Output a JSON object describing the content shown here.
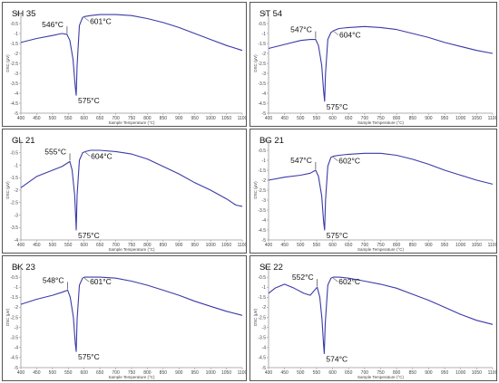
{
  "colors": {
    "trace": "#3a3aa8",
    "frame": "#555555",
    "axis": "#999999",
    "annotation_line": "#555555"
  },
  "chart_data": [
    {
      "type": "line",
      "panel_label": "SH 35",
      "xlabel": "Sample Temperature (°C)",
      "ylabel": "DSC (μV)",
      "xlim": [
        400,
        1100
      ],
      "ylim": [
        -5,
        0
      ],
      "xticks": [
        400,
        450,
        500,
        550,
        600,
        650,
        700,
        750,
        800,
        850,
        900,
        950,
        1000,
        1050,
        1100
      ],
      "yticks": [
        0,
        -0.5,
        -1,
        -1.5,
        -2,
        -2.5,
        -3,
        -3.5,
        -4,
        -4.5,
        -5
      ],
      "ytick_labels": [
        "0",
        "-0.5",
        "-1",
        "-1.5",
        "-2",
        "-2.5",
        "-3",
        "-3.5",
        "-4",
        "-4.5",
        "-5"
      ],
      "series": [
        {
          "x": [
            400,
            450,
            500,
            530,
            546,
            555,
            565,
            572,
            575,
            578,
            585,
            595,
            601,
            620,
            650,
            700,
            750,
            800,
            850,
            900,
            950,
            1000,
            1050,
            1100
          ],
          "y": [
            -1.45,
            -1.25,
            -1.1,
            -1.0,
            -1.05,
            -1.35,
            -2.3,
            -3.7,
            -4.1,
            -2.6,
            -0.6,
            -0.2,
            -0.15,
            -0.1,
            -0.05,
            -0.05,
            -0.1,
            -0.25,
            -0.45,
            -0.7,
            -1.0,
            -1.3,
            -1.6,
            -1.85
          ]
        }
      ],
      "annotations": [
        {
          "text": "546°C",
          "x": 546,
          "y": -1.05
        },
        {
          "text": "601°C",
          "x": 601,
          "y": -0.15
        },
        {
          "text": "575°C",
          "x": 575,
          "y": -4.1
        }
      ]
    },
    {
      "type": "line",
      "panel_label": "ST 54",
      "xlabel": "Sample Temperature (°C)",
      "ylabel": "DSC (μV)",
      "xlim": [
        400,
        1100
      ],
      "ylim": [
        -5,
        0
      ],
      "xticks": [
        400,
        450,
        500,
        550,
        600,
        650,
        700,
        750,
        800,
        850,
        900,
        950,
        1000,
        1050,
        1100
      ],
      "yticks": [
        0,
        -0.5,
        -1,
        -1.5,
        -2,
        -2.5,
        -3,
        -3.5,
        -4,
        -4.5,
        -5
      ],
      "ytick_labels": [
        "0",
        "-0.5",
        "-1",
        "-1.5",
        "-2",
        "-2.5",
        "-3",
        "-3.5",
        "-4",
        "-4.5",
        "-5"
      ],
      "series": [
        {
          "x": [
            400,
            450,
            500,
            530,
            547,
            556,
            566,
            572,
            575,
            578,
            585,
            595,
            604,
            620,
            650,
            700,
            750,
            800,
            850,
            900,
            950,
            1000,
            1050,
            1100
          ],
          "y": [
            -1.75,
            -1.55,
            -1.35,
            -1.3,
            -1.3,
            -1.6,
            -2.6,
            -3.9,
            -4.4,
            -3.0,
            -1.3,
            -0.95,
            -0.85,
            -0.75,
            -0.7,
            -0.65,
            -0.7,
            -0.8,
            -1.0,
            -1.2,
            -1.45,
            -1.65,
            -1.85,
            -2.0
          ]
        }
      ],
      "annotations": [
        {
          "text": "547°C",
          "x": 547,
          "y": -1.3
        },
        {
          "text": "604°C",
          "x": 604,
          "y": -0.85
        },
        {
          "text": "575°C",
          "x": 575,
          "y": -4.4
        }
      ]
    },
    {
      "type": "line",
      "panel_label": "GL 21",
      "xlabel": "Sample Temperature (°C)",
      "ylabel": "DSC (μV)",
      "xlim": [
        400,
        1100
      ],
      "ylim": [
        -4,
        0
      ],
      "xticks": [
        400,
        450,
        500,
        550,
        600,
        650,
        700,
        750,
        800,
        850,
        900,
        950,
        1000,
        1050,
        1100
      ],
      "yticks": [
        0,
        -0.5,
        -1,
        -1.5,
        -2,
        -2.5,
        -3,
        -3.5,
        -4
      ],
      "ytick_labels": [
        "0",
        "-0.5",
        "-1",
        "-1.5",
        "-2",
        "-2.5",
        "-3",
        "-3.5",
        "-4"
      ],
      "series": [
        {
          "x": [
            400,
            450,
            500,
            530,
            555,
            562,
            570,
            574,
            575,
            578,
            585,
            595,
            604,
            620,
            650,
            700,
            750,
            800,
            850,
            900,
            950,
            1000,
            1050,
            1080,
            1100
          ],
          "y": [
            -1.9,
            -1.45,
            -1.2,
            -1.05,
            -0.85,
            -1.2,
            -2.2,
            -3.3,
            -3.6,
            -2.2,
            -0.8,
            -0.5,
            -0.45,
            -0.4,
            -0.4,
            -0.45,
            -0.55,
            -0.75,
            -1.05,
            -1.35,
            -1.7,
            -2.0,
            -2.35,
            -2.6,
            -2.65
          ]
        }
      ],
      "annotations": [
        {
          "text": "555°C",
          "x": 555,
          "y": -0.85
        },
        {
          "text": "604°C",
          "x": 604,
          "y": -0.45
        },
        {
          "text": "575°C",
          "x": 575,
          "y": -3.6
        }
      ]
    },
    {
      "type": "line",
      "panel_label": "BG 21",
      "xlabel": "Sample Temperature (°C)",
      "ylabel": "DSC (μV)",
      "xlim": [
        400,
        1100
      ],
      "ylim": [
        -5,
        0
      ],
      "xticks": [
        400,
        450,
        500,
        550,
        600,
        650,
        700,
        750,
        800,
        850,
        900,
        950,
        1000,
        1050,
        1100
      ],
      "yticks": [
        0,
        -0.5,
        -1,
        -1.5,
        -2,
        -2.5,
        -3,
        -3.5,
        -4,
        -4.5,
        -5
      ],
      "ytick_labels": [
        "0",
        "-0.5",
        "-1",
        "-1.5",
        "-2",
        "-2.5",
        "-3",
        "-3.5",
        "-4",
        "-4.5",
        "-5"
      ],
      "series": [
        {
          "x": [
            400,
            450,
            500,
            530,
            547,
            556,
            566,
            572,
            575,
            578,
            585,
            595,
            602,
            620,
            650,
            700,
            750,
            800,
            850,
            900,
            950,
            1000,
            1050,
            1100
          ],
          "y": [
            -2.0,
            -1.85,
            -1.75,
            -1.65,
            -1.5,
            -1.8,
            -2.8,
            -4.1,
            -4.5,
            -3.0,
            -1.3,
            -0.85,
            -0.8,
            -0.75,
            -0.7,
            -0.65,
            -0.65,
            -0.75,
            -0.95,
            -1.2,
            -1.5,
            -1.75,
            -2.0,
            -2.2
          ]
        }
      ],
      "annotations": [
        {
          "text": "547°C",
          "x": 547,
          "y": -1.5
        },
        {
          "text": "602°C",
          "x": 602,
          "y": -0.8
        },
        {
          "text": "575°C",
          "x": 575,
          "y": -4.5
        }
      ]
    },
    {
      "type": "line",
      "panel_label": "BK 23",
      "xlabel": "Sample Temperature (°C)",
      "ylabel": "DSC (μV)",
      "xlim": [
        400,
        1100
      ],
      "ylim": [
        -5,
        0
      ],
      "xticks": [
        400,
        450,
        500,
        550,
        600,
        650,
        700,
        750,
        800,
        850,
        900,
        950,
        1000,
        1050,
        1100
      ],
      "yticks": [
        0,
        -0.5,
        -1,
        -1.5,
        -2,
        -2.5,
        -3,
        -3.5,
        -4,
        -4.5,
        -5
      ],
      "ytick_labels": [
        "0",
        "-0.5",
        "-1",
        "-1.5",
        "-2",
        "-2.5",
        "-3",
        "-3.5",
        "-4",
        "-4.5",
        "-5"
      ],
      "series": [
        {
          "x": [
            400,
            450,
            500,
            530,
            548,
            556,
            566,
            572,
            575,
            578,
            585,
            595,
            601,
            620,
            650,
            700,
            750,
            800,
            850,
            900,
            950,
            1000,
            1050,
            1100
          ],
          "y": [
            -1.85,
            -1.6,
            -1.4,
            -1.25,
            -1.15,
            -1.5,
            -2.5,
            -3.8,
            -4.2,
            -2.6,
            -0.9,
            -0.55,
            -0.5,
            -0.5,
            -0.5,
            -0.55,
            -0.7,
            -0.9,
            -1.15,
            -1.4,
            -1.7,
            -1.95,
            -2.2,
            -2.4
          ]
        }
      ],
      "annotations": [
        {
          "text": "548°C",
          "x": 548,
          "y": -1.15
        },
        {
          "text": "601°C",
          "x": 601,
          "y": -0.5
        },
        {
          "text": "575°C",
          "x": 575,
          "y": -4.2
        }
      ]
    },
    {
      "type": "line",
      "panel_label": "SE 22",
      "xlabel": "Sample Temperature (°C)",
      "ylabel": "DSC (μV)",
      "xlim": [
        400,
        1100
      ],
      "ylim": [
        -5,
        0
      ],
      "xticks": [
        400,
        450,
        500,
        550,
        600,
        650,
        700,
        750,
        800,
        850,
        900,
        950,
        1000,
        1050,
        1100
      ],
      "yticks": [
        0,
        -0.5,
        -1,
        -1.5,
        -2,
        -2.5,
        -3,
        -3.5,
        -4,
        -4.5,
        -5
      ],
      "ytick_labels": [
        "0",
        "-0.5",
        "-1",
        "-1.5",
        "-2",
        "-2.5",
        "-3",
        "-3.5",
        "-4",
        "-4.5",
        "-5"
      ],
      "series": [
        {
          "x": [
            400,
            420,
            450,
            480,
            510,
            530,
            552,
            560,
            567,
            572,
            574,
            577,
            585,
            595,
            602,
            620,
            650,
            700,
            750,
            800,
            850,
            900,
            950,
            1000,
            1050,
            1100
          ],
          "y": [
            -1.3,
            -1.05,
            -0.85,
            -1.05,
            -1.3,
            -1.4,
            -1.0,
            -1.5,
            -2.6,
            -3.9,
            -4.3,
            -2.8,
            -0.9,
            -0.55,
            -0.5,
            -0.5,
            -0.55,
            -0.7,
            -0.85,
            -1.05,
            -1.35,
            -1.65,
            -2.0,
            -2.35,
            -2.65,
            -2.85
          ]
        }
      ],
      "annotations": [
        {
          "text": "552°C",
          "x": 552,
          "y": -1.0
        },
        {
          "text": "602°C",
          "x": 602,
          "y": -0.5
        },
        {
          "text": "574°C",
          "x": 574,
          "y": -4.3
        }
      ]
    }
  ]
}
